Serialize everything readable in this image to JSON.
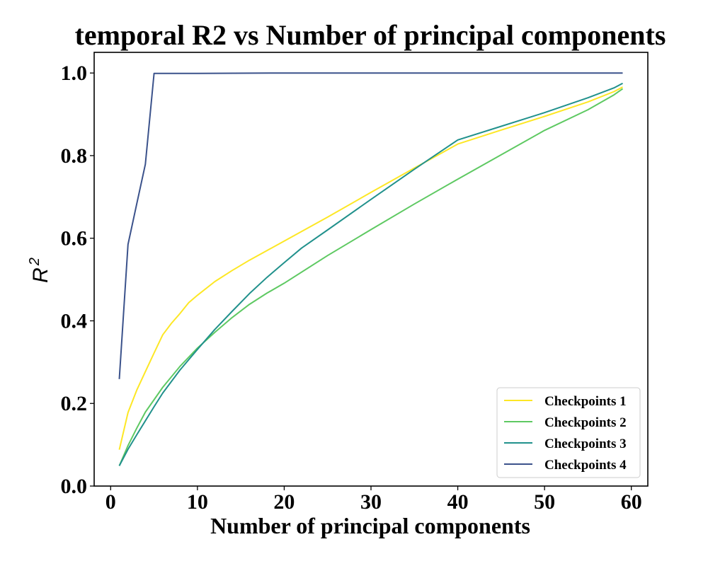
{
  "chart_data": {
    "type": "line",
    "title": "temporal R2 vs Number of principal components",
    "xlabel": "Number of principal components",
    "ylabel_base": "R",
    "ylabel_sup": "2",
    "xlim": [
      -1.9,
      61.9
    ],
    "ylim": [
      0.0,
      1.05
    ],
    "xticks": [
      0,
      10,
      20,
      30,
      40,
      50,
      60
    ],
    "xtick_labels": [
      "0",
      "10",
      "20",
      "30",
      "40",
      "50",
      "60"
    ],
    "yticks": [
      0.0,
      0.2,
      0.4,
      0.6,
      0.8,
      1.0
    ],
    "ytick_labels": [
      "0.0",
      "0.2",
      "0.4",
      "0.6",
      "0.8",
      "1.0"
    ],
    "grid": false,
    "legend_position": "lower-right",
    "series": [
      {
        "name": "Checkpoints 1",
        "color": "#fde725",
        "x": [
          1,
          2,
          3,
          4,
          5,
          6,
          7,
          8,
          9,
          10,
          12,
          14,
          16,
          18,
          20,
          25,
          30,
          35,
          40,
          45,
          50,
          55,
          58,
          59
        ],
        "y": [
          0.088,
          0.178,
          0.232,
          0.277,
          0.322,
          0.366,
          0.394,
          0.418,
          0.444,
          0.462,
          0.495,
          0.522,
          0.547,
          0.57,
          0.593,
          0.651,
          0.711,
          0.77,
          0.828,
          0.862,
          0.895,
          0.93,
          0.955,
          0.966
        ]
      },
      {
        "name": "Checkpoints 2",
        "color": "#5ec962",
        "x": [
          1,
          2,
          3,
          4,
          5,
          6,
          8,
          10,
          12,
          14,
          16,
          18,
          20,
          25,
          30,
          35,
          40,
          45,
          50,
          55,
          58,
          59
        ],
        "y": [
          0.049,
          0.098,
          0.14,
          0.179,
          0.209,
          0.239,
          0.29,
          0.334,
          0.372,
          0.408,
          0.44,
          0.467,
          0.491,
          0.558,
          0.621,
          0.683,
          0.743,
          0.802,
          0.861,
          0.911,
          0.947,
          0.962
        ]
      },
      {
        "name": "Checkpoints 3",
        "color": "#21918c",
        "x": [
          1,
          2,
          3,
          4,
          5,
          6,
          8,
          10,
          12,
          14,
          16,
          18,
          20,
          22,
          25,
          30,
          35,
          40,
          45,
          50,
          55,
          58,
          59
        ],
        "y": [
          0.049,
          0.089,
          0.124,
          0.158,
          0.192,
          0.225,
          0.281,
          0.331,
          0.379,
          0.423,
          0.466,
          0.505,
          0.541,
          0.576,
          0.62,
          0.694,
          0.767,
          0.838,
          0.871,
          0.904,
          0.94,
          0.964,
          0.975
        ]
      },
      {
        "name": "Checkpoints 4",
        "color": "#3b528b",
        "x": [
          1,
          2,
          3,
          4,
          5,
          6,
          8,
          10,
          20,
          30,
          40,
          50,
          59
        ],
        "y": [
          0.259,
          0.585,
          0.683,
          0.779,
          0.999,
          0.999,
          0.999,
          0.999,
          1.0,
          1.0,
          1.0,
          1.0,
          1.0
        ]
      }
    ]
  }
}
